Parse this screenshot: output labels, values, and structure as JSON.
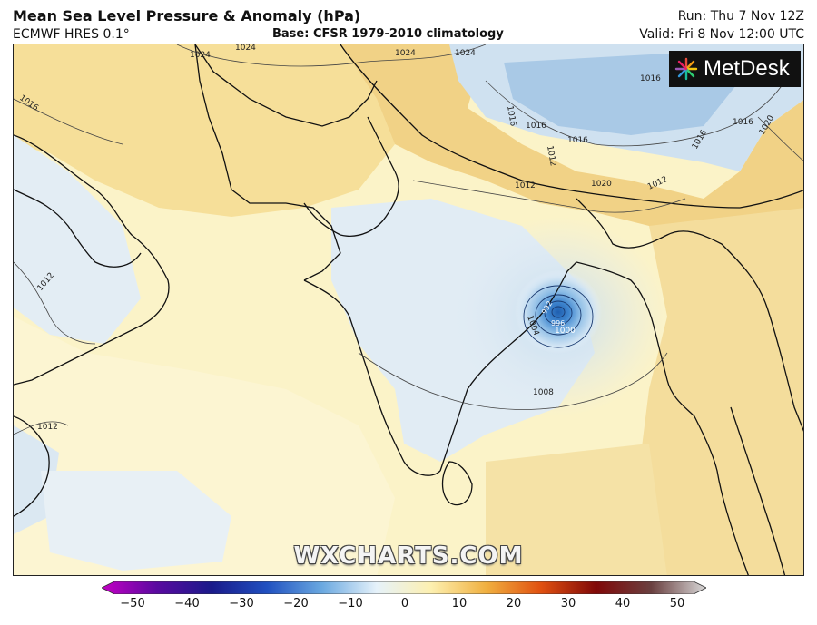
{
  "header": {
    "title": "Mean Sea Level Pressure & Anomaly (hPa)",
    "model": "ECMWF HRES 0.1°",
    "base": "Base: CFSR 1979-2010 climatology",
    "run": "Run: Thu 7 Nov 12Z",
    "valid": "Valid: Fri 8 Nov 12:00 UTC"
  },
  "logo": {
    "text": "MetDesk",
    "icon": "metdesk-starburst-icon"
  },
  "watermark": "WXCHARTS.COM",
  "colorbar": {
    "ticks": [
      "−50",
      "−40",
      "−30",
      "−20",
      "−10",
      "0",
      "10",
      "20",
      "30",
      "40",
      "50"
    ],
    "colors": [
      "#c400c4",
      "#5a0aa0",
      "#1a1a8a",
      "#2050c0",
      "#6aa8e0",
      "#e6f2fa",
      "#fdf0b0",
      "#f0b040",
      "#e05010",
      "#800808",
      "#6a4040",
      "#d8d8d8"
    ]
  },
  "isobar_labels": [
    "1024",
    "1024",
    "1024",
    "1024",
    "1016",
    "1016",
    "1016",
    "1016",
    "1016",
    "1016",
    "1016",
    "1020",
    "1020",
    "1012",
    "1012",
    "1012",
    "1012",
    "1012",
    "1008",
    "1004",
    "1000",
    "996",
    "992"
  ]
}
